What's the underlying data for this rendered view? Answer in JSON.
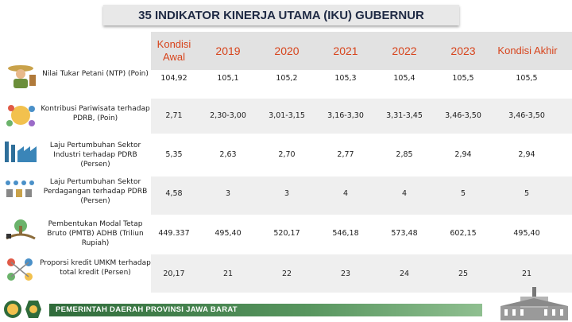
{
  "title": "35 INDIKATOR KINERJA UTAMA (IKU) GUBERNUR",
  "columns": [
    "Kondisi Awal",
    "2019",
    "2020",
    "2021",
    "2022",
    "2023",
    "Kondisi Akhir"
  ],
  "rows": [
    {
      "label": "Nilai Tukar Petani (NTP) (Poin)",
      "icon": "farmer-icon",
      "values": [
        "104,92",
        "105,1",
        "105,2",
        "105,3",
        "105,4",
        "105,5",
        "105,5"
      ]
    },
    {
      "label": "Kontribusi Pariwisata terhadap PDRB, (Poin)",
      "icon": "tourism-icon",
      "values": [
        "2,71",
        "2,30-3,00",
        "3,01-3,15",
        "3,16-3,30",
        "3,31-3,45",
        "3,46-3,50",
        "3,46-3,50"
      ]
    },
    {
      "label": "Laju Pertumbuhan Sektor Industri terhadap PDRB (Persen)",
      "icon": "factory-icon",
      "values": [
        "5,35",
        "2,63",
        "2,70",
        "2,77",
        "2,85",
        "2,94",
        "2,94"
      ]
    },
    {
      "label": "Laju Pertumbuhan Sektor Perdagangan terhadap PDRB (Persen)",
      "icon": "trade-icon",
      "values": [
        "4,58",
        "3",
        "3",
        "4",
        "4",
        "5",
        "5"
      ]
    },
    {
      "label": "Pembentukan Modal Tetap Bruto (PMTB) ADHB (Triliun Rupiah)",
      "icon": "capital-icon",
      "values": [
        "449.337",
        "495,40",
        "520,17",
        "546,18",
        "573,48",
        "602,15",
        "495,40"
      ]
    },
    {
      "label": "Proporsi kredit UMKM terhadap total kredit (Persen)",
      "icon": "credit-icon",
      "values": [
        "20,17",
        "21",
        "22",
        "23",
        "24",
        "25",
        "21"
      ]
    }
  ],
  "footer": {
    "text": "PEMERINTAH DAERAH PROVINSI JAWA BARAT"
  },
  "colors": {
    "header_text": "#d7441c",
    "footer_green": "#2f6b3a"
  }
}
